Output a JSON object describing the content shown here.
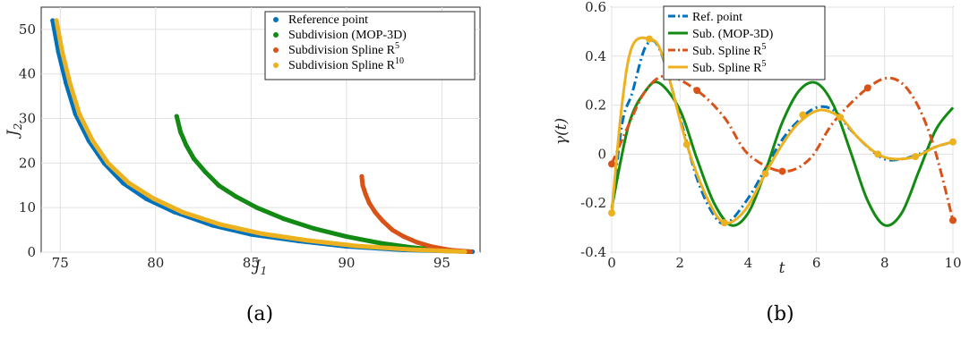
{
  "captions": [
    "(a)",
    "(b)"
  ],
  "chart_data": [
    {
      "type": "scatter",
      "xlabel": "J1",
      "ylabel": "J2",
      "xlim": [
        74,
        97
      ],
      "ylim": [
        0,
        55
      ],
      "xticks": [
        75,
        80,
        85,
        90,
        95
      ],
      "yticks": [
        0,
        10,
        20,
        30,
        40,
        50
      ],
      "grid": true,
      "legend_position": "top-right",
      "series": [
        {
          "name": "Reference point",
          "color": "#0072BD",
          "label_sup": "",
          "points": [
            [
              74.6,
              52.0
            ],
            [
              74.9,
              45
            ],
            [
              75.3,
              38
            ],
            [
              75.8,
              31
            ],
            [
              76.5,
              25
            ],
            [
              77.3,
              20
            ],
            [
              78.3,
              15.5
            ],
            [
              79.5,
              12
            ],
            [
              81,
              9
            ],
            [
              83,
              6
            ],
            [
              85,
              4
            ],
            [
              87.5,
              2.5
            ],
            [
              90,
              1.3
            ],
            [
              93,
              0.5
            ],
            [
              96.6,
              0.1
            ]
          ]
        },
        {
          "name": "Subdivision (MOP-3D)",
          "color": "#138A13",
          "label_sup": "",
          "points": [
            [
              81.1,
              30.5
            ],
            [
              81.3,
              27
            ],
            [
              81.6,
              24
            ],
            [
              82,
              21
            ],
            [
              82.6,
              18
            ],
            [
              83.3,
              15
            ],
            [
              84.2,
              12.5
            ],
            [
              85.3,
              10
            ],
            [
              86.7,
              7.5
            ],
            [
              88.3,
              5.3
            ],
            [
              90,
              3.5
            ],
            [
              91.8,
              2
            ],
            [
              93.5,
              1
            ],
            [
              95,
              0.4
            ],
            [
              96.5,
              0.1
            ]
          ]
        },
        {
          "name": "Subdivision Spline R",
          "color": "#D95319",
          "label_sup": "5",
          "points": [
            [
              90.8,
              17
            ],
            [
              90.85,
              15
            ],
            [
              91,
              13
            ],
            [
              91.2,
              11
            ],
            [
              91.5,
              9
            ],
            [
              91.9,
              7
            ],
            [
              92.4,
              5
            ],
            [
              93,
              3.5
            ],
            [
              93.7,
              2.2
            ],
            [
              94.5,
              1.2
            ],
            [
              95.4,
              0.5
            ],
            [
              96.5,
              0.1
            ]
          ]
        },
        {
          "name": "Subdivision Spline R",
          "color": "#EDB120",
          "label_sup": "10",
          "points": [
            [
              74.8,
              52
            ],
            [
              75.1,
              45
            ],
            [
              75.5,
              38
            ],
            [
              76,
              31
            ],
            [
              76.7,
              25
            ],
            [
              77.5,
              20
            ],
            [
              78.6,
              15.5
            ],
            [
              79.9,
              12
            ],
            [
              81.4,
              9
            ],
            [
              83.4,
              6.2
            ],
            [
              85.5,
              4.2
            ],
            [
              88,
              2.6
            ],
            [
              90.5,
              1.4
            ],
            [
              93.3,
              0.6
            ],
            [
              96.2,
              0.1
            ]
          ]
        }
      ]
    },
    {
      "type": "line",
      "xlabel": "t",
      "ylabel": "γ(t)",
      "xlim": [
        0,
        10
      ],
      "ylim": [
        -0.4,
        0.6
      ],
      "xticks": [
        0,
        2,
        4,
        6,
        8,
        10
      ],
      "yticks": [
        -0.4,
        -0.2,
        0,
        0.2,
        0.4,
        0.6
      ],
      "grid": true,
      "legend_position": "top-center",
      "series": [
        {
          "name": "Ref. point",
          "color": "#0072BD",
          "style": "dashdot",
          "label_sup": "",
          "x": [
            0,
            0.3,
            0.6,
            1.0,
            1.4,
            2.0,
            2.5,
            3.0,
            3.4,
            4.0,
            4.5,
            5.0,
            5.5,
            6.0,
            6.5,
            7.0,
            7.5,
            8.0,
            8.5,
            9.0,
            9.5,
            10.0
          ],
          "y": [
            -0.24,
            0.12,
            0.25,
            0.44,
            0.43,
            0.15,
            -0.1,
            -0.25,
            -0.28,
            -0.18,
            -0.06,
            0.06,
            0.14,
            0.19,
            0.18,
            0.1,
            0.03,
            -0.02,
            -0.02,
            0.0,
            0.03,
            0.05
          ]
        },
        {
          "name": "Sub. (MOP-3D)",
          "color": "#138A13",
          "style": "solid",
          "label_sup": "",
          "x": [
            0,
            0.5,
            1.0,
            1.4,
            2.0,
            2.5,
            3.0,
            3.5,
            4.0,
            4.5,
            5.0,
            5.5,
            6.0,
            6.5,
            7.0,
            7.5,
            8.0,
            8.5,
            9.0,
            9.5,
            10.0
          ],
          "y": [
            -0.22,
            0.12,
            0.26,
            0.29,
            0.18,
            -0.02,
            -0.2,
            -0.29,
            -0.24,
            -0.07,
            0.13,
            0.26,
            0.29,
            0.2,
            0.01,
            -0.19,
            -0.29,
            -0.24,
            -0.07,
            0.1,
            0.19
          ]
        },
        {
          "name": "Sub. Spline R",
          "color": "#D95319",
          "style": "dashdot",
          "label_sup": "5",
          "markers": true,
          "x": [
            0,
            0.5,
            1.0,
            1.6,
            2.5,
            3.3,
            4.0,
            5.0,
            5.8,
            6.5,
            7.5,
            8.2,
            8.8,
            9.4,
            10.0
          ],
          "y": [
            -0.04,
            0.12,
            0.26,
            0.32,
            0.26,
            0.15,
            0.0,
            -0.07,
            -0.02,
            0.13,
            0.27,
            0.31,
            0.24,
            0.05,
            -0.27
          ],
          "marker_x": [
            0,
            2.5,
            5.0,
            7.5,
            10.0
          ],
          "marker_y": [
            -0.04,
            0.26,
            -0.07,
            0.27,
            -0.27
          ]
        },
        {
          "name": "Sub. Spline R",
          "color": "#EDB120",
          "style": "solid",
          "label_sup": "5",
          "markers": true,
          "x": [
            0,
            0.3,
            0.6,
            1.1,
            1.5,
            2.2,
            2.8,
            3.3,
            3.9,
            4.5,
            5.0,
            5.5,
            6.1,
            6.7,
            7.2,
            7.8,
            8.3,
            8.9,
            9.5,
            10.0
          ],
          "y": [
            -0.24,
            0.2,
            0.44,
            0.47,
            0.4,
            0.04,
            -0.18,
            -0.28,
            -0.23,
            -0.08,
            0.04,
            0.13,
            0.18,
            0.15,
            0.07,
            0.0,
            -0.02,
            -0.01,
            0.03,
            0.05
          ],
          "marker_x": [
            0,
            1.1,
            2.2,
            3.3,
            4.5,
            5.6,
            6.7,
            7.8,
            8.9,
            10.0
          ],
          "marker_y": [
            -0.24,
            0.47,
            0.04,
            -0.28,
            -0.08,
            0.16,
            0.15,
            0.0,
            -0.01,
            0.05
          ]
        }
      ]
    }
  ]
}
